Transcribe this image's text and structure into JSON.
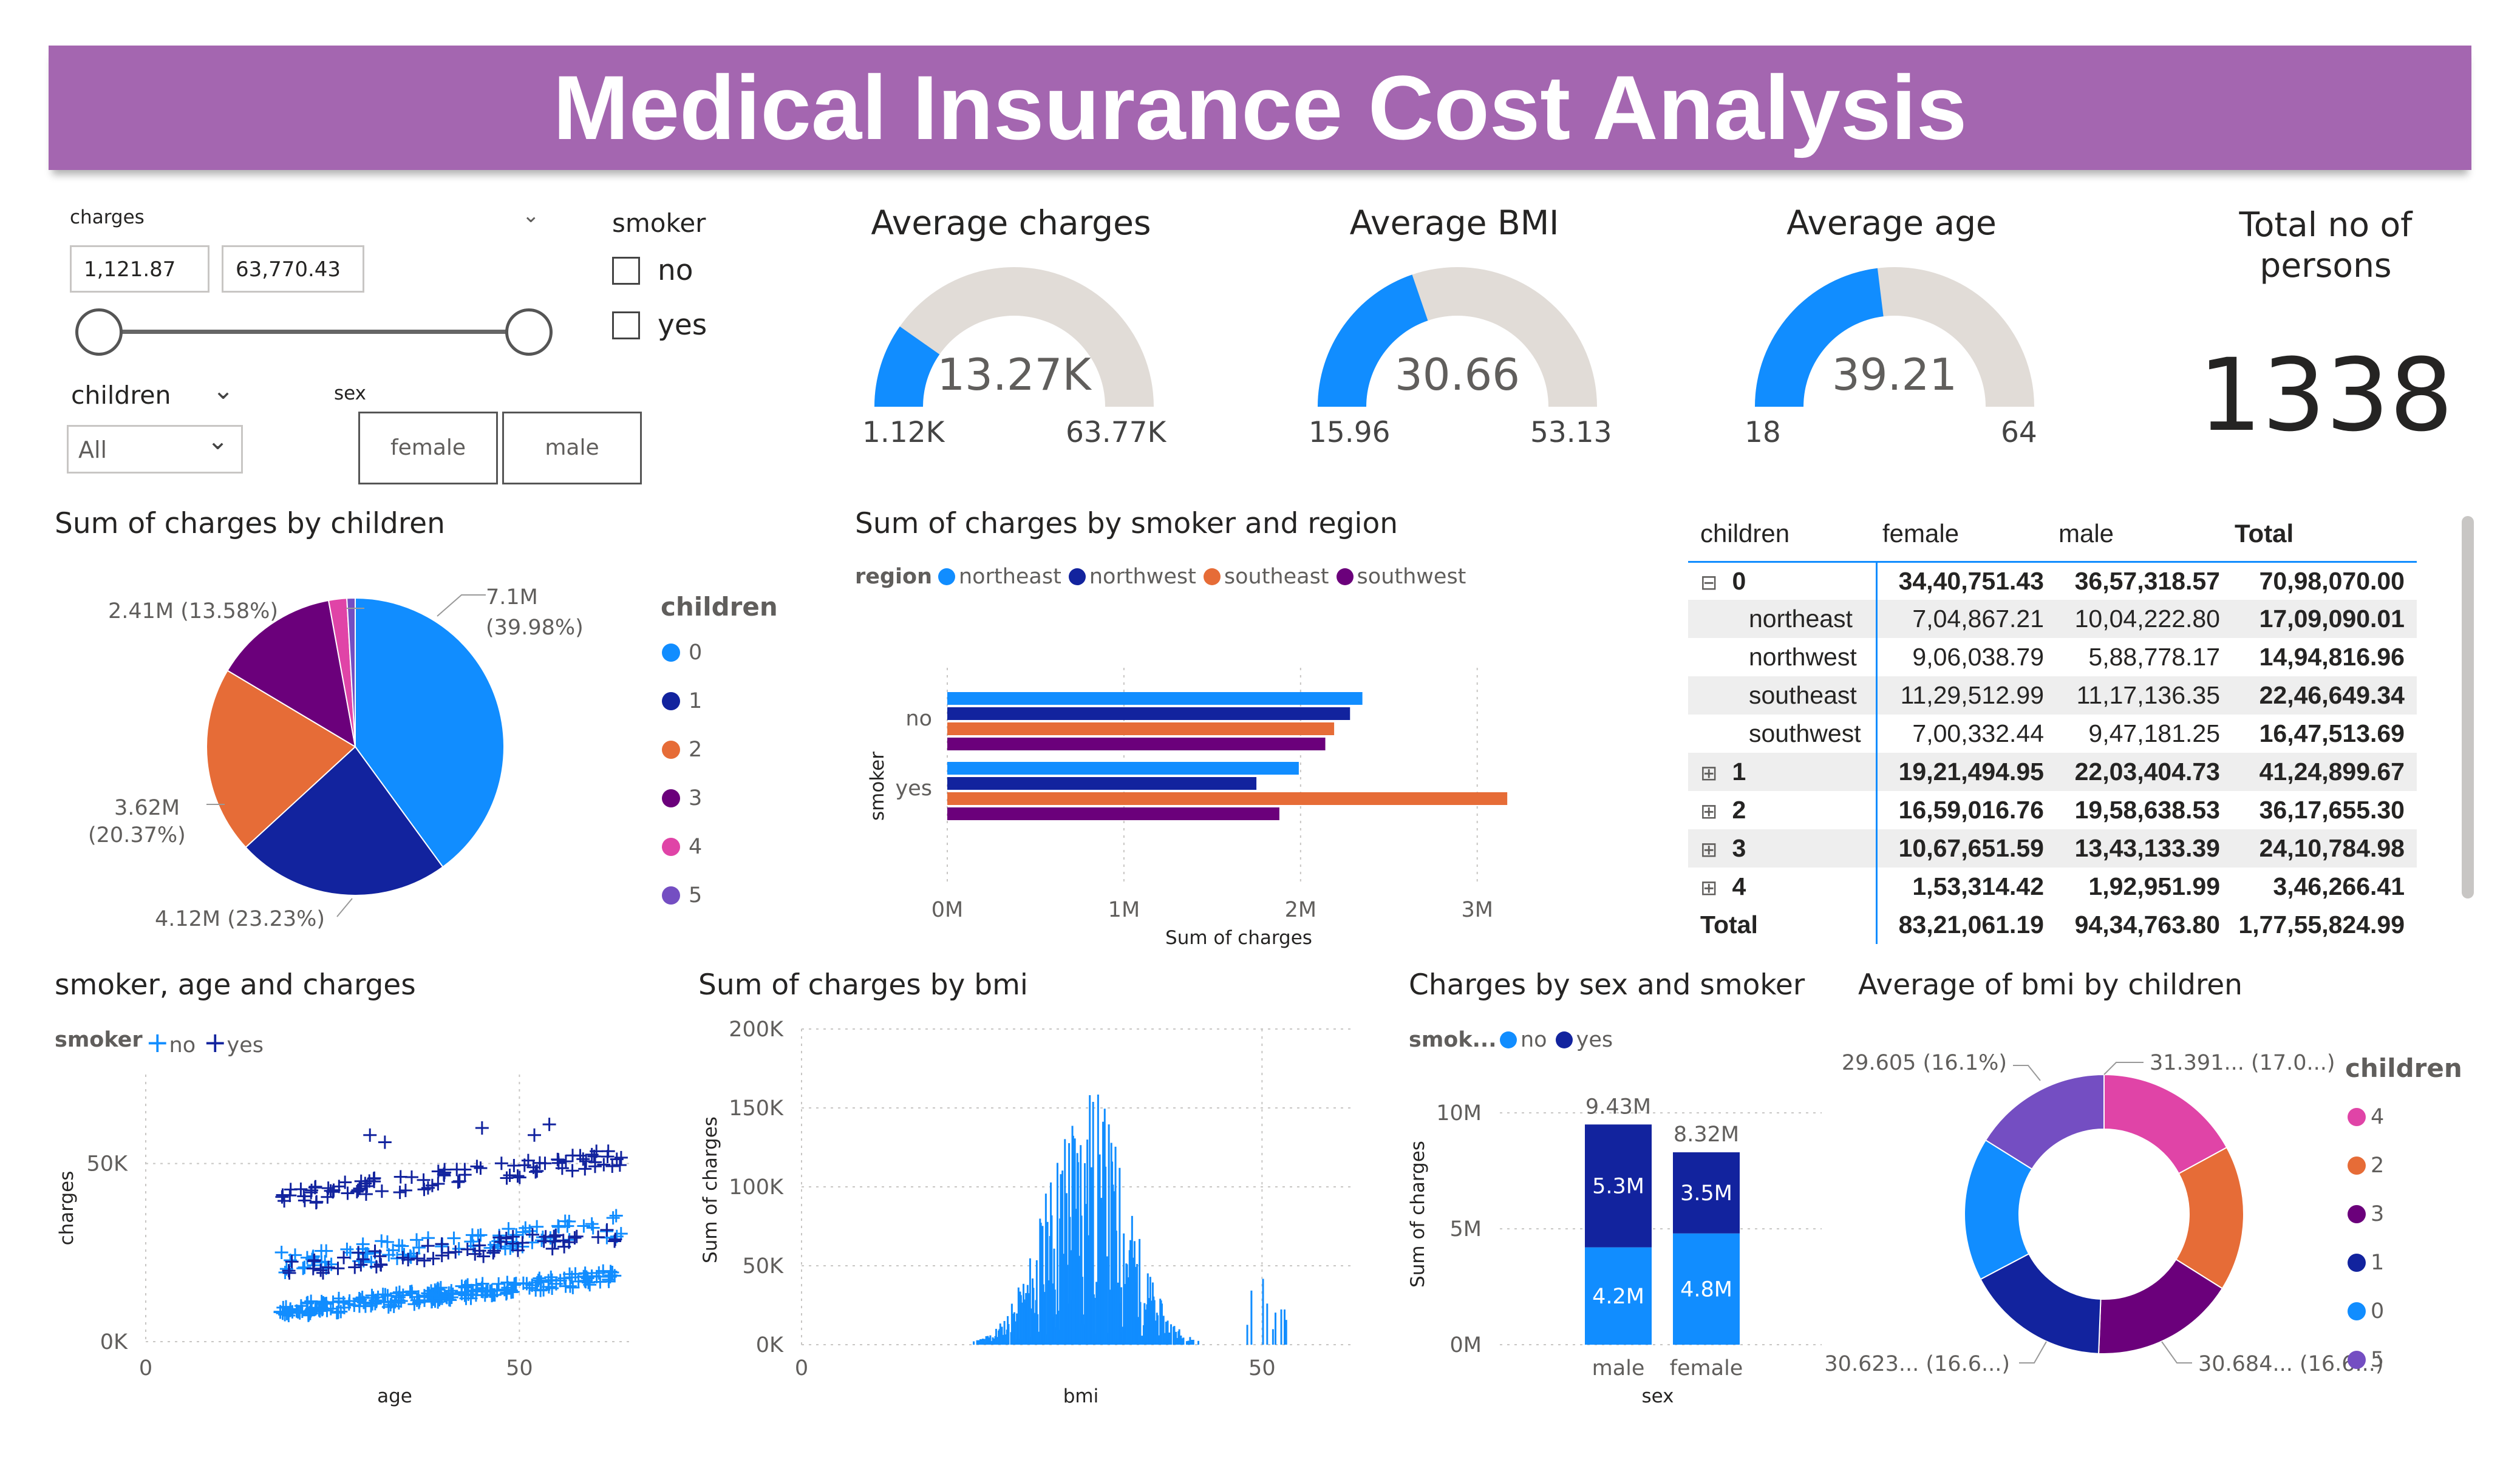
{
  "title": "Medical Insurance Cost Analysis",
  "filters": {
    "charges": {
      "label": "charges",
      "min": "1,121.87",
      "max": "63,770.43"
    },
    "smoker": {
      "label": "smoker",
      "options": [
        "no",
        "yes"
      ]
    },
    "children": {
      "label": "children",
      "selected": "All"
    },
    "sex": {
      "label": "sex",
      "options": [
        "female",
        "male"
      ]
    }
  },
  "kpis": [
    {
      "title": "Average charges",
      "value": "13.27K",
      "min": "1.12K",
      "max": "63.77K",
      "fraction": 0.195
    },
    {
      "title": "Average BMI",
      "value": "30.66",
      "min": "15.96",
      "max": "53.13",
      "fraction": 0.395
    },
    {
      "title": "Average age",
      "value": "39.21",
      "min": "18",
      "max": "64",
      "fraction": 0.461
    }
  ],
  "total_persons": {
    "title_line1": "Total no of",
    "title_line2": "persons",
    "value": "1338"
  },
  "colors": {
    "c0": "#118DFF",
    "c1": "#12239E",
    "c2": "#E66C37",
    "c3": "#6B007B",
    "c4": "#E044A7",
    "c5": "#744EC2",
    "banner": "#A466B0",
    "gauge_track": "#E1DCD7"
  },
  "chart_data": [
    {
      "type": "pie",
      "title": "Sum of charges by children",
      "legend_title": "children",
      "categories": [
        "0",
        "1",
        "2",
        "3",
        "4",
        "5"
      ],
      "values": [
        7.1,
        4.12,
        3.62,
        2.41,
        0.35,
        0.16
      ],
      "labels": [
        {
          "value": "7.1M",
          "pct": "(39.98%)"
        },
        {
          "value": "4.12M (23.23%)",
          "pct": ""
        },
        {
          "value": "3.62M",
          "pct": "(20.37%)"
        },
        {
          "value": "2.41M (13.58%)",
          "pct": ""
        }
      ]
    },
    {
      "type": "bar",
      "title": "Sum of charges by smoker and region",
      "legend_title": "region",
      "categories": [
        "no",
        "yes"
      ],
      "series": [
        {
          "name": "northeast",
          "values": [
            2.35,
            1.99
          ]
        },
        {
          "name": "northwest",
          "values": [
            2.28,
            1.75
          ]
        },
        {
          "name": "southeast",
          "values": [
            2.19,
            3.17
          ]
        },
        {
          "name": "southwest",
          "values": [
            2.14,
            1.88
          ]
        }
      ],
      "xlabel": "Sum of charges",
      "ylabel": "smoker",
      "xticks": [
        "0M",
        "1M",
        "2M",
        "3M"
      ],
      "xlim": [
        0,
        3.3
      ]
    },
    {
      "type": "scatter",
      "title": "smoker, age and charges",
      "legend_title": "smoker",
      "series": [
        {
          "name": "no"
        },
        {
          "name": "yes"
        }
      ],
      "xlabel": "age",
      "ylabel": "charges",
      "xticks": [
        "0",
        "50"
      ],
      "yticks": [
        "0K",
        "50K"
      ],
      "xlim": [
        0,
        65
      ],
      "ylim": [
        0,
        75000
      ]
    },
    {
      "type": "bar",
      "title": "Sum of charges by bmi",
      "xlabel": "bmi",
      "ylabel": "Sum of charges",
      "xticks": [
        "0",
        "50"
      ],
      "yticks": [
        "0K",
        "50K",
        "100K",
        "150K",
        "200K"
      ],
      "xlim": [
        0,
        60
      ],
      "ylim": [
        0,
        200000
      ]
    },
    {
      "type": "bar",
      "title": "Charges by sex and smoker",
      "legend_title": "smok...",
      "categories": [
        "male",
        "female"
      ],
      "series": [
        {
          "name": "no",
          "values": [
            4.2,
            4.8
          ],
          "labels": [
            "4.2M",
            "4.8M"
          ]
        },
        {
          "name": "yes",
          "values": [
            5.3,
            3.5
          ],
          "labels": [
            "5.3M",
            "3.5M"
          ]
        }
      ],
      "totals": [
        "9.43M",
        "8.32M"
      ],
      "xlabel": "sex",
      "ylabel": "Sum of charges",
      "yticks": [
        "0M",
        "5M",
        "10M"
      ],
      "ylim": [
        0,
        11
      ]
    },
    {
      "type": "pie",
      "title": "Average of bmi by children",
      "legend_title": "children",
      "categories": [
        "4",
        "2",
        "3",
        "1",
        "0",
        "5"
      ],
      "values": [
        31.391,
        30.978,
        30.684,
        30.623,
        30.55,
        29.605
      ],
      "labels": [
        "31.391... (17.0...)",
        "30.684... (16.6...)",
        "30.623... (16.6...)",
        "29.605 (16.1%)"
      ]
    }
  ],
  "matrix": {
    "headers": [
      "children",
      "female",
      "male",
      "Total"
    ],
    "rows": [
      {
        "label": "0",
        "expander": "⊟",
        "bold": true,
        "female": "34,40,751.43",
        "male": "36,57,318.57",
        "total": "70,98,070.00"
      },
      {
        "label": "northeast",
        "sub": true,
        "female": "7,04,867.21",
        "male": "10,04,222.80",
        "total": "17,09,090.01"
      },
      {
        "label": "northwest",
        "sub": true,
        "female": "9,06,038.79",
        "male": "5,88,778.17",
        "total": "14,94,816.96"
      },
      {
        "label": "southeast",
        "sub": true,
        "female": "11,29,512.99",
        "male": "11,17,136.35",
        "total": "22,46,649.34"
      },
      {
        "label": "southwest",
        "sub": true,
        "female": "7,00,332.44",
        "male": "9,47,181.25",
        "total": "16,47,513.69"
      },
      {
        "label": "1",
        "expander": "⊞",
        "bold": true,
        "female": "19,21,494.95",
        "male": "22,03,404.73",
        "total": "41,24,899.67"
      },
      {
        "label": "2",
        "expander": "⊞",
        "bold": true,
        "female": "16,59,016.76",
        "male": "19,58,638.53",
        "total": "36,17,655.30"
      },
      {
        "label": "3",
        "expander": "⊞",
        "bold": true,
        "female": "10,67,651.59",
        "male": "13,43,133.39",
        "total": "24,10,784.98"
      },
      {
        "label": "4",
        "expander": "⊞",
        "bold": true,
        "female": "1,53,314.42",
        "male": "1,92,951.99",
        "total": "3,46,266.41"
      },
      {
        "label": "Total",
        "bold": true,
        "female": "83,21,061.19",
        "male": "94,34,763.80",
        "total": "1,77,55,824.99"
      }
    ]
  }
}
